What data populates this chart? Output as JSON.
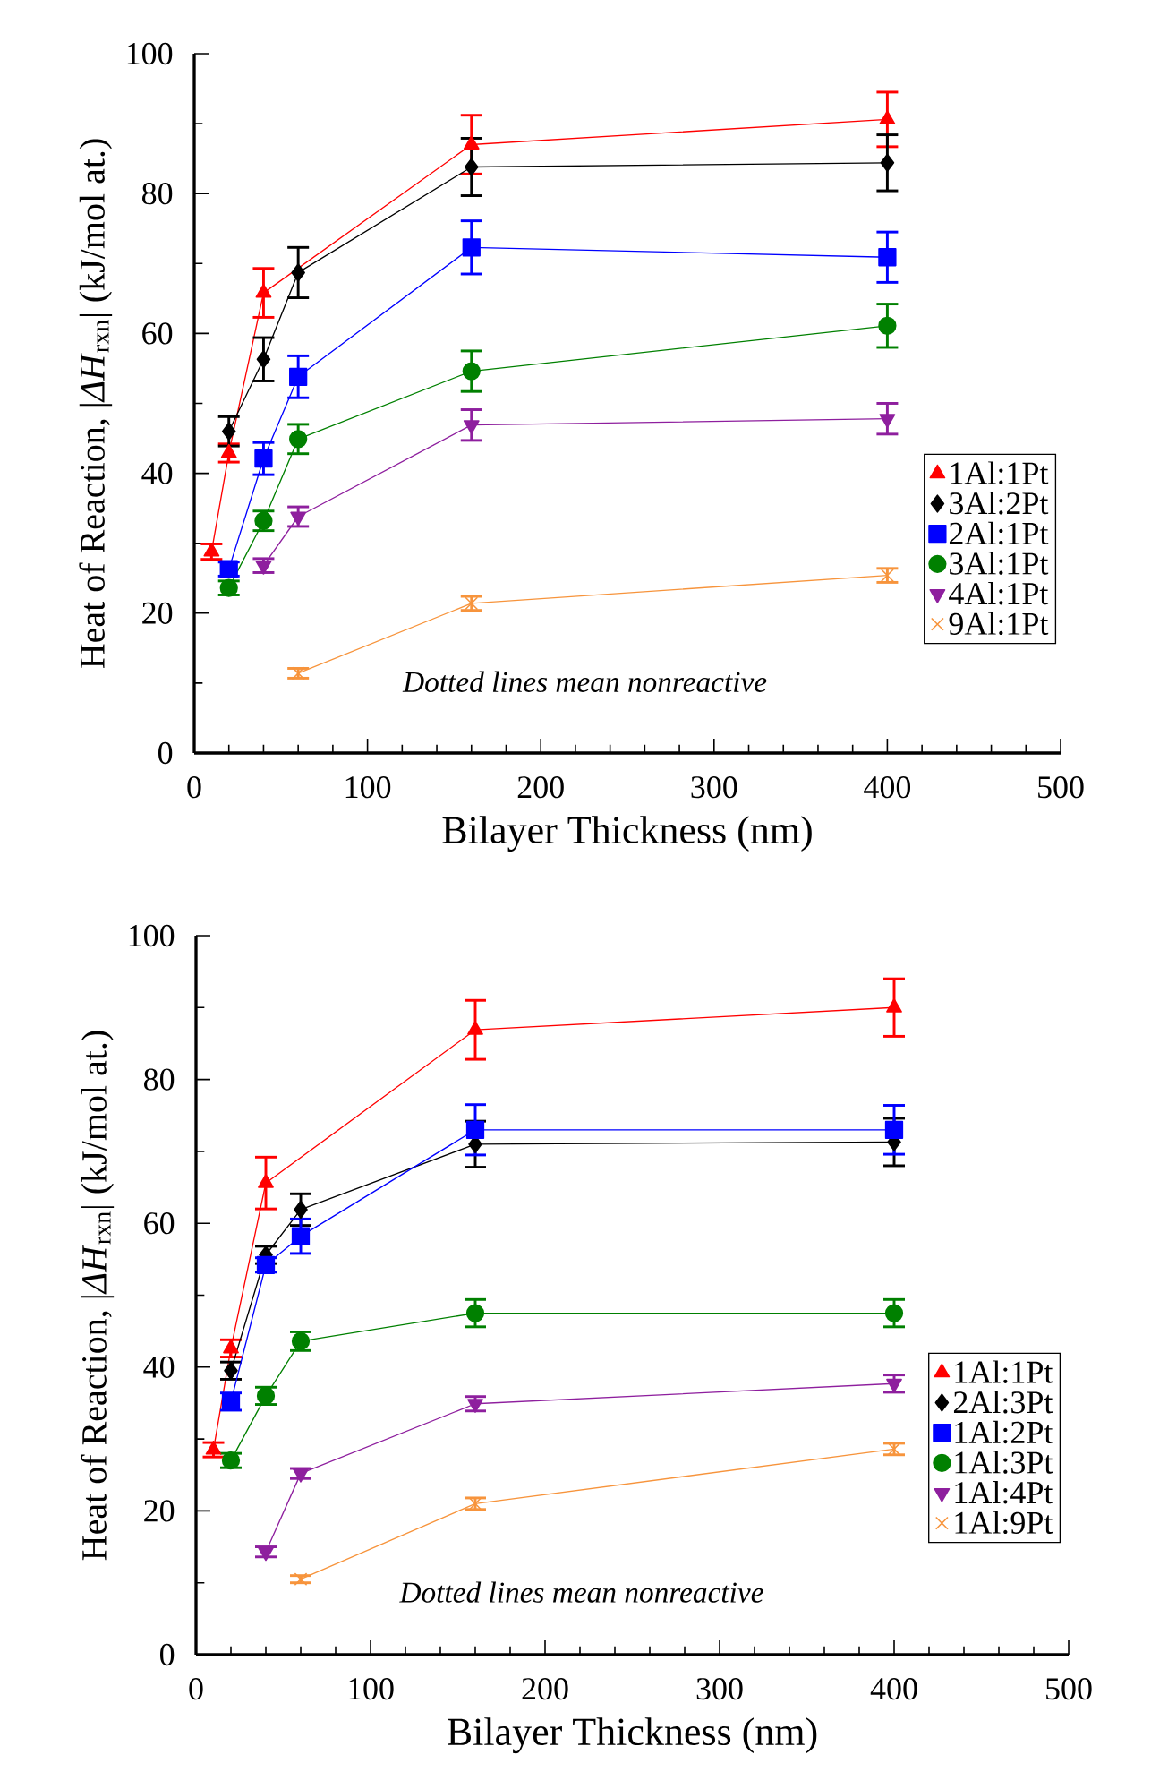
{
  "chart_data": [
    {
      "type": "line",
      "xlabel": "Bilayer Thickness (nm)",
      "ylabel": "Heat of Reaction, |*ΔH*$_{rxn}$| (kJ/mol at.)",
      "xlim": [
        0,
        500
      ],
      "ylim": [
        0,
        100
      ],
      "xticks": [
        0,
        100,
        200,
        300,
        400,
        500
      ],
      "yticks": [
        0,
        20,
        40,
        60,
        80,
        100
      ],
      "legend": "right",
      "annotations": [
        "Dotted lines mean nonreactive"
      ],
      "series": [
        {
          "name": "1Al:1Pt",
          "color": "#ff0000",
          "marker": "triangle",
          "x": [
            10,
            20,
            40,
            160,
            400
          ],
          "values": [
            28.8,
            42.9,
            65.8,
            87.0,
            90.6
          ],
          "errors": [
            1.1,
            1.3,
            3.5,
            4.2,
            3.9
          ]
        },
        {
          "name": "3Al:2Pt",
          "color": "#000000",
          "marker": "diamond",
          "x": [
            20,
            40,
            60,
            160,
            400
          ],
          "values": [
            46.0,
            56.3,
            68.7,
            83.8,
            84.4
          ],
          "errors": [
            2.1,
            3.1,
            3.6,
            4.1,
            4.0
          ]
        },
        {
          "name": "2Al:1Pt",
          "color": "#0000ff",
          "marker": "square",
          "x": [
            20,
            40,
            60,
            160,
            400
          ],
          "values": [
            26.3,
            42.1,
            53.8,
            72.3,
            70.9
          ],
          "errors": [
            1.0,
            2.3,
            3.0,
            3.8,
            3.6
          ]
        },
        {
          "name": "3Al:1Pt",
          "color": "#008000",
          "marker": "circle",
          "x": [
            20,
            40,
            60,
            160,
            400
          ],
          "values": [
            23.6,
            33.2,
            44.9,
            54.6,
            61.1
          ],
          "errors": [
            1.0,
            1.4,
            2.1,
            2.9,
            3.1
          ]
        },
        {
          "name": "4Al:1Pt",
          "color": "#8e1f9e",
          "marker": "triangle-down",
          "x": [
            40,
            60,
            160,
            400
          ],
          "values": [
            26.8,
            33.8,
            46.9,
            47.8
          ],
          "errors": [
            1.0,
            1.4,
            2.2,
            2.2
          ]
        },
        {
          "name": "9Al:1Pt",
          "color": "#f7943c",
          "marker": "cross",
          "x": [
            60,
            160,
            400
          ],
          "values": [
            11.4,
            21.4,
            25.4
          ],
          "errors": [
            0.7,
            1.0,
            1.0
          ]
        }
      ]
    },
    {
      "type": "line",
      "xlabel": "Bilayer Thickness (nm)",
      "ylabel": "Heat of Reaction, |*ΔH*$_{rxn}$| (kJ/mol at.)",
      "xlim": [
        0,
        500
      ],
      "ylim": [
        0,
        100
      ],
      "xticks": [
        0,
        100,
        200,
        300,
        400,
        500
      ],
      "yticks": [
        0,
        20,
        40,
        60,
        80,
        100
      ],
      "legend": "bottom right",
      "annotations": [
        "Dotted lines mean nonreactive"
      ],
      "series": [
        {
          "name": "1Al:1Pt",
          "color": "#ff0000",
          "marker": "triangle",
          "x": [
            10,
            20,
            40,
            160,
            400
          ],
          "values": [
            28.5,
            42.6,
            65.6,
            86.9,
            90.0
          ],
          "errors": [
            1.0,
            1.2,
            3.6,
            4.1,
            4.0
          ]
        },
        {
          "name": "2Al:3Pt",
          "color": "#000000",
          "marker": "diamond",
          "x": [
            20,
            40,
            60,
            160,
            400
          ],
          "values": [
            39.5,
            55.6,
            61.9,
            71.0,
            71.3
          ],
          "errors": [
            1.2,
            1.2,
            2.2,
            3.2,
            3.3
          ]
        },
        {
          "name": "1Al:2Pt",
          "color": "#0000ff",
          "marker": "square",
          "x": [
            20,
            40,
            60,
            160,
            400
          ],
          "values": [
            35.2,
            54.2,
            58.2,
            73.0,
            73.0
          ],
          "errors": [
            1.2,
            1.0,
            2.4,
            3.5,
            3.4
          ]
        },
        {
          "name": "1Al:3Pt",
          "color": "#008000",
          "marker": "circle",
          "x": [
            20,
            40,
            60,
            160,
            400
          ],
          "values": [
            27.0,
            36.0,
            43.6,
            47.5,
            47.5
          ],
          "errors": [
            1.0,
            1.2,
            1.3,
            1.9,
            1.9
          ]
        },
        {
          "name": "1Al:4Pt",
          "color": "#8e1f9e",
          "marker": "triangle-down",
          "x": [
            40,
            60,
            160,
            400
          ],
          "values": [
            14.3,
            25.2,
            34.9,
            37.7
          ],
          "errors": [
            0.7,
            0.7,
            1.0,
            1.2
          ]
        },
        {
          "name": "1Al:9Pt",
          "color": "#f7943c",
          "marker": "cross",
          "x": [
            60,
            160,
            400
          ],
          "values": [
            10.5,
            21.0,
            28.6
          ],
          "errors": [
            0.5,
            0.8,
            0.8
          ]
        }
      ]
    }
  ]
}
